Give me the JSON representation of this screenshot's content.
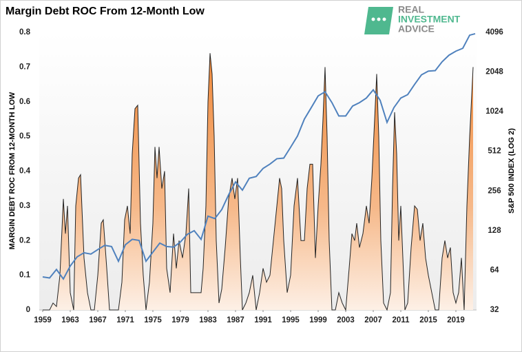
{
  "chart_data": {
    "type": "area-line",
    "title": "Margin Debt ROC From 12-Month Low",
    "logo_text": [
      "REAL",
      "INVESTMENT",
      "ADVICE"
    ],
    "ylabel": "MARGIN DEBT ROC FROM 12-MONTH LOW",
    "y2label": "S&P 500 INDEX (LOG 2)",
    "xlim": [
      1958.5,
      2022
    ],
    "xticks": [
      1959,
      1963,
      1967,
      1971,
      1975,
      1979,
      1983,
      1987,
      1991,
      1995,
      1999,
      2003,
      2007,
      2011,
      2015,
      2019
    ],
    "ylim": [
      0,
      0.8
    ],
    "yticks": [
      0,
      0.1,
      0.2,
      0.3,
      0.4,
      0.5,
      0.6,
      0.7,
      0.8
    ],
    "y2lim": [
      32,
      4096
    ],
    "y2ticks": [
      32,
      64,
      128,
      256,
      512,
      1024,
      2048,
      4096
    ],
    "y2log": 2,
    "series": [
      {
        "color": "#f08a3c",
        "line_color": "#222222",
        "x": [
          1959,
          1960,
          1960.5,
          1961,
          1961.5,
          1962,
          1962.3,
          1962.6,
          1963,
          1963.5,
          1963.8,
          1964.2,
          1964.5,
          1965,
          1965.5,
          1966,
          1966.5,
          1967,
          1967.5,
          1967.8,
          1968.3,
          1968.7,
          1969.5,
          1970,
          1970.5,
          1970.9,
          1971.3,
          1971.7,
          1972,
          1972.4,
          1972.8,
          1973.2,
          1973.6,
          1974,
          1974.5,
          1975,
          1975.3,
          1975.6,
          1975.9,
          1976.3,
          1976.7,
          1977,
          1977.5,
          1978,
          1978.4,
          1978.8,
          1979.3,
          1979.8,
          1980.2,
          1980.5,
          1981,
          1981.5,
          1982,
          1982.3,
          1982.7,
          1983,
          1983.3,
          1983.6,
          1983.9,
          1984.2,
          1984.6,
          1985,
          1985.5,
          1986,
          1986.5,
          1986.9,
          1987.3,
          1987.7,
          1988,
          1988.5,
          1989,
          1989.5,
          1990,
          1990.5,
          1991,
          1991.5,
          1992,
          1992.5,
          1993,
          1993.4,
          1993.7,
          1994,
          1994.5,
          1995,
          1995.5,
          1996,
          1996.5,
          1997,
          1997.4,
          1997.8,
          1998.2,
          1998.6,
          1999,
          1999.4,
          1999.7,
          2000,
          2000.3,
          2000.6,
          2001,
          2001.5,
          2002,
          2002.5,
          2003,
          2003.5,
          2003.9,
          2004.3,
          2004.6,
          2005,
          2005.5,
          2006,
          2006.4,
          2006.8,
          2007.2,
          2007.5,
          2007.8,
          2008.1,
          2008.5,
          2009,
          2009.5,
          2009.8,
          2010.1,
          2010.4,
          2010.7,
          2011,
          2011.3,
          2011.6,
          2012,
          2012.5,
          2013,
          2013.4,
          2013.8,
          2014.2,
          2014.6,
          2015,
          2015.5,
          2016,
          2016.5,
          2017,
          2017.4,
          2017.8,
          2018.2,
          2018.6,
          2019,
          2019.4,
          2019.8,
          2020.2,
          2020.6,
          2021,
          2021.5
        ],
        "values": [
          0,
          0,
          0.02,
          0.01,
          0.1,
          0.32,
          0.22,
          0.3,
          0.05,
          0,
          0.3,
          0.38,
          0.39,
          0.15,
          0.05,
          0,
          0,
          0.1,
          0.25,
          0.26,
          0.12,
          0,
          0,
          0,
          0.08,
          0.26,
          0.3,
          0.22,
          0.45,
          0.58,
          0.59,
          0.25,
          0.1,
          0,
          0.08,
          0.25,
          0.47,
          0.38,
          0.47,
          0.35,
          0.4,
          0.12,
          0.05,
          0.22,
          0.12,
          0.2,
          0.15,
          0.22,
          0.35,
          0.05,
          0.05,
          0.05,
          0.05,
          0.12,
          0.3,
          0.6,
          0.74,
          0.68,
          0.5,
          0.2,
          0.02,
          0.06,
          0.18,
          0.32,
          0.38,
          0.32,
          0.38,
          0.15,
          0,
          0.02,
          0.05,
          0.1,
          0,
          0.05,
          0.12,
          0.08,
          0.1,
          0.2,
          0.3,
          0.38,
          0.35,
          0.2,
          0.05,
          0.1,
          0.3,
          0.38,
          0.2,
          0.2,
          0.35,
          0.42,
          0.42,
          0.15,
          0.3,
          0.42,
          0.55,
          0.7,
          0.5,
          0.2,
          0,
          0,
          0.05,
          0.02,
          0,
          0.12,
          0.22,
          0.2,
          0.25,
          0.18,
          0.22,
          0.3,
          0.25,
          0.38,
          0.55,
          0.68,
          0.5,
          0.2,
          0.02,
          0,
          0.05,
          0.35,
          0.57,
          0.45,
          0.2,
          0.3,
          0.15,
          0,
          0.02,
          0.18,
          0.3,
          0.29,
          0.2,
          0.25,
          0.15,
          0.1,
          0.05,
          0,
          0,
          0.15,
          0.2,
          0.15,
          0.18,
          0.05,
          0.02,
          0.05,
          0.15,
          0,
          0.3,
          0.5,
          0.7
        ]
      },
      {
        "color": "#4f81bd",
        "axis": "y2",
        "x": [
          1959,
          1960,
          1961,
          1962,
          1963,
          1964,
          1965,
          1966,
          1967,
          1968,
          1969,
          1970,
          1971,
          1972,
          1973,
          1974,
          1975,
          1976,
          1977,
          1978,
          1979,
          1980,
          1981,
          1982,
          1983,
          1984,
          1985,
          1986,
          1987,
          1988,
          1989,
          1990,
          1991,
          1992,
          1993,
          1994,
          1995,
          1996,
          1997,
          1998,
          1999,
          2000,
          2001,
          2002,
          2003,
          2004,
          2005,
          2006,
          2007,
          2008,
          2009,
          2010,
          2011,
          2012,
          2013,
          2014,
          2015,
          2016,
          2017,
          2018,
          2019,
          2020,
          2021,
          2021.8
        ],
        "values": [
          57,
          56,
          65,
          55,
          69,
          81,
          87,
          85,
          92,
          99,
          97,
          75,
          100,
          110,
          108,
          75,
          88,
          103,
          97,
          96,
          105,
          120,
          128,
          110,
          165,
          158,
          185,
          240,
          300,
          260,
          320,
          330,
          380,
          410,
          450,
          455,
          550,
          670,
          900,
          1100,
          1350,
          1450,
          1200,
          950,
          950,
          1130,
          1200,
          1300,
          1500,
          1250,
          850,
          1100,
          1300,
          1380,
          1650,
          1950,
          2080,
          2100,
          2450,
          2750,
          2950,
          3100,
          3900,
          4000
        ]
      }
    ]
  }
}
